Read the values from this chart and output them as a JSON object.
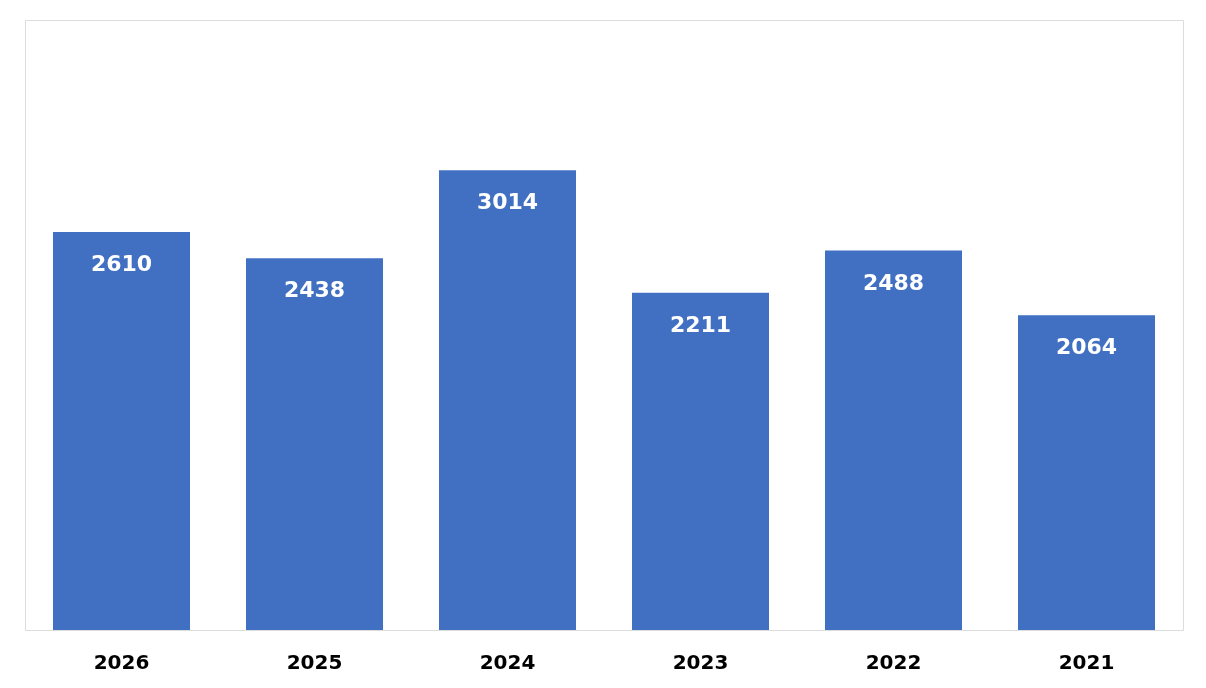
{
  "chart_data": {
    "type": "bar",
    "categories": [
      "2026",
      "2025",
      "2024",
      "2023",
      "2022",
      "2021"
    ],
    "values": [
      2610,
      2438,
      3014,
      2211,
      2488,
      2064
    ],
    "color": "#4170c3",
    "ylim": [
      0,
      4000
    ],
    "data_labels": true,
    "tick_labels": "x"
  }
}
